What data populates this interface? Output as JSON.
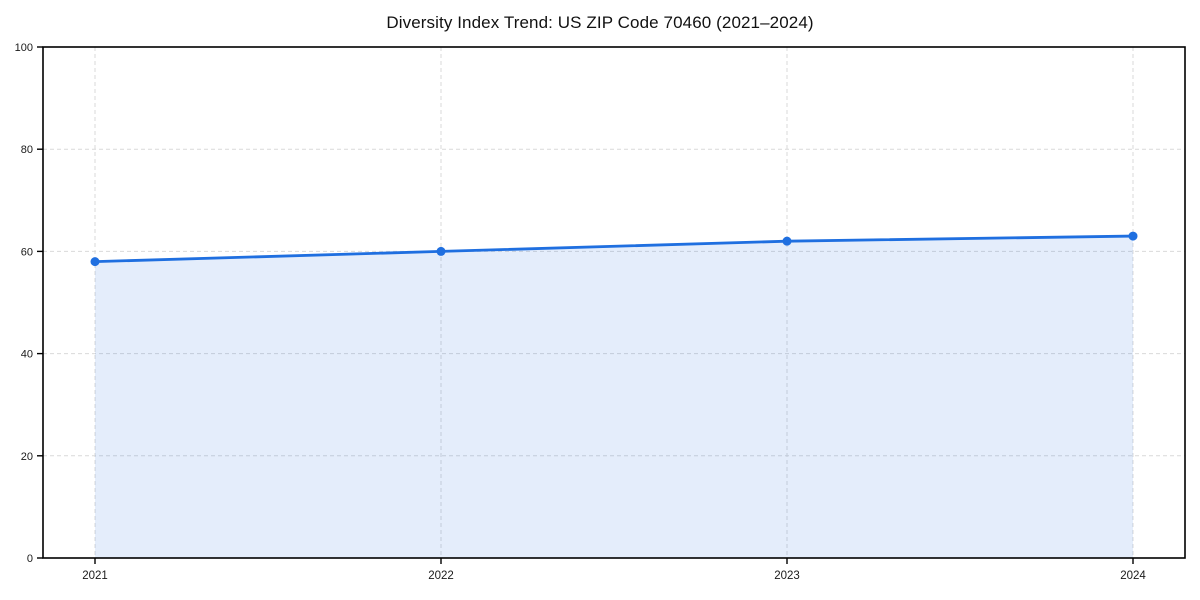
{
  "chart_data": {
    "type": "line",
    "title": "Diversity Index Trend: US ZIP Code 70460 (2021–2024)",
    "x": [
      "2021",
      "2022",
      "2023",
      "2024"
    ],
    "series": [
      {
        "name": "Diversity Index",
        "values": [
          58,
          60,
          62,
          63
        ]
      }
    ],
    "xlabel": "",
    "ylabel": "",
    "ylim": [
      0,
      100
    ],
    "yticks": [
      0,
      20,
      40,
      60,
      80,
      100
    ],
    "grid": true,
    "grid_style": "dashed",
    "legend": false,
    "area_fill": true,
    "markers": "circle",
    "colors": {
      "line": "#1f6fe0",
      "marker": "#1f6fe0",
      "fill": "rgba(31,111,224,0.12)",
      "grid": "#d9d9d9",
      "frame": "#000000",
      "tick_text": "#1a1a1a",
      "background": "#ffffff"
    }
  }
}
